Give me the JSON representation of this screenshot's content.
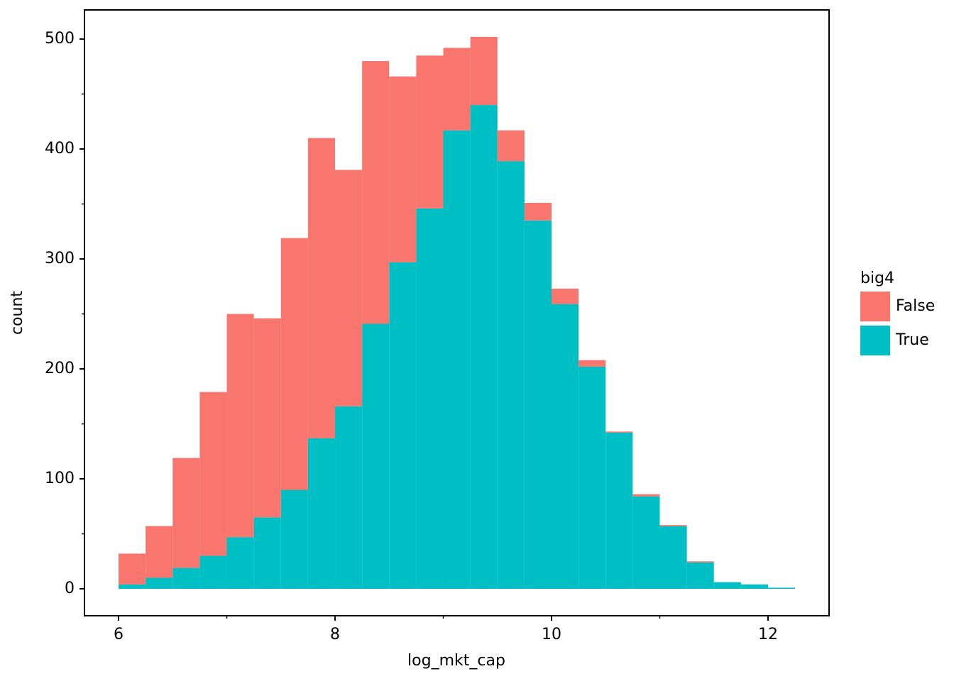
{
  "chart_data": {
    "type": "histogram",
    "stacked": true,
    "x_label": "log_mkt_cap",
    "y_label": "count",
    "legend_title": "big4",
    "legend_position": "right",
    "bins": [
      6,
      6.25,
      6.5,
      6.75,
      7,
      7.25,
      7.5,
      7.75,
      8,
      8.25,
      8.5,
      8.75,
      9,
      9.25,
      9.5,
      9.75,
      10,
      10.25,
      10.5,
      10.75,
      11,
      11.25,
      11.5,
      11.75,
      12,
      12.25
    ],
    "series": [
      {
        "name": "False",
        "color": "#f8766d",
        "values": [
          28,
          47,
          100,
          149,
          203,
          181,
          229,
          273,
          215,
          239,
          169,
          139,
          75,
          62,
          28,
          16,
          14,
          6,
          1,
          2,
          1,
          1,
          0,
          0,
          0
        ]
      },
      {
        "name": "True",
        "color": "#00bfc4",
        "values": [
          4,
          10,
          19,
          30,
          47,
          65,
          90,
          137,
          166,
          241,
          297,
          346,
          417,
          440,
          389,
          335,
          259,
          202,
          142,
          84,
          57,
          24,
          6,
          4,
          1
        ]
      }
    ],
    "stack_order": [
      "True",
      "False"
    ],
    "xlim": [
      5.685,
      12.564
    ],
    "ylim": [
      -24.5,
      526.5
    ],
    "xticks": [
      6,
      8,
      10,
      12
    ],
    "xminorticks": [
      7,
      9,
      11
    ],
    "yticks": [
      0,
      100,
      200,
      300,
      400,
      500
    ],
    "yminorticks": [
      50,
      150,
      250,
      350,
      450
    ]
  }
}
